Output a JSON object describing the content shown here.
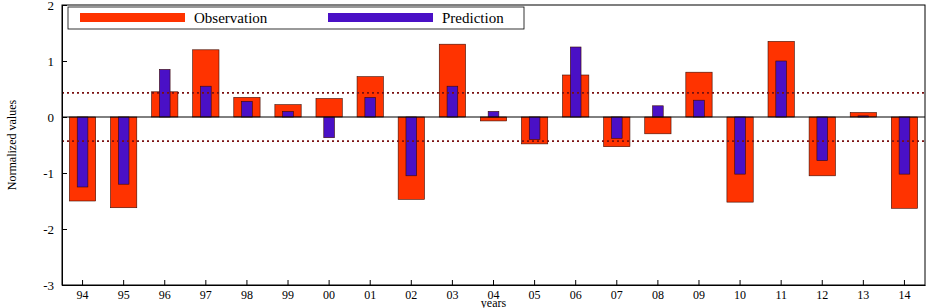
{
  "chart_data": {
    "type": "bar",
    "x_label": "years",
    "y_label": "Normalized values",
    "categories": [
      "94",
      "95",
      "96",
      "97",
      "98",
      "99",
      "00",
      "01",
      "02",
      "03",
      "04",
      "05",
      "06",
      "07",
      "08",
      "09",
      "10",
      "11",
      "12",
      "13",
      "14"
    ],
    "series": [
      {
        "name": "Observation",
        "color": "#ff3300",
        "values": [
          -1.5,
          -1.62,
          0.45,
          1.2,
          0.35,
          0.22,
          0.33,
          0.72,
          -1.47,
          1.3,
          -0.07,
          -0.48,
          0.75,
          -0.53,
          -0.3,
          0.8,
          -1.52,
          1.35,
          -1.05,
          0.08,
          -1.63
        ]
      },
      {
        "name": "Prediction",
        "color": "#4a10c6",
        "values": [
          -1.25,
          -1.2,
          0.85,
          0.55,
          0.28,
          0.1,
          -0.37,
          0.35,
          -1.05,
          0.55,
          0.1,
          -0.4,
          1.25,
          -0.38,
          0.2,
          0.3,
          -1.02,
          1.0,
          -0.78,
          0.02,
          -1.02
        ]
      }
    ],
    "hlines": [
      0.43,
      -0.43
    ],
    "ylim": [
      -3,
      2
    ],
    "yticks": [
      -3,
      -2,
      -1,
      0,
      1,
      2
    ],
    "legend": "top-left",
    "grid": false
  }
}
